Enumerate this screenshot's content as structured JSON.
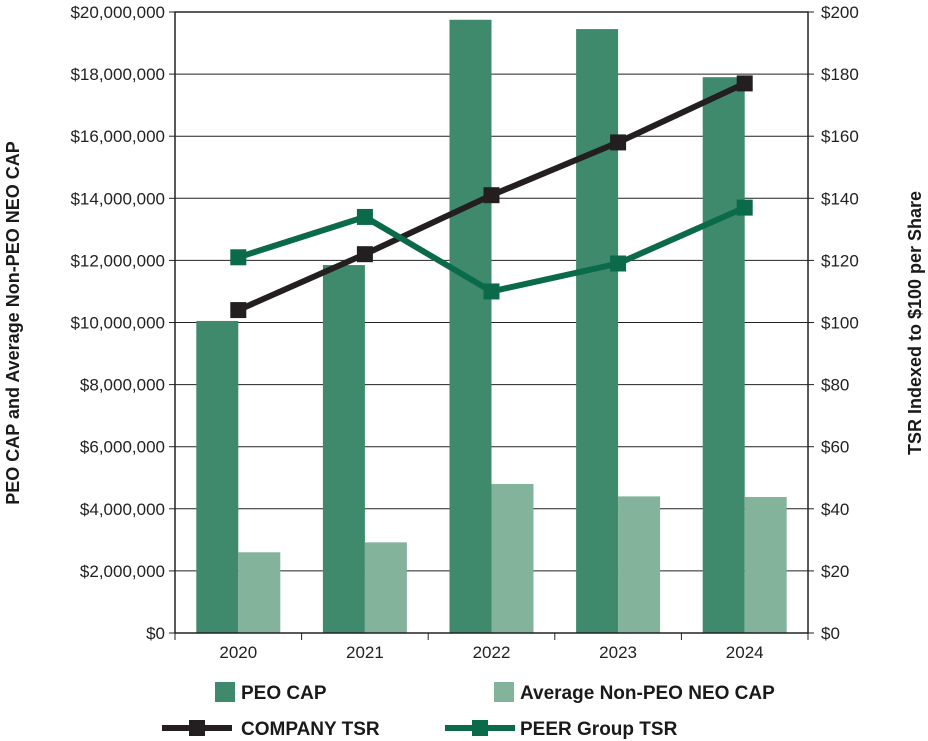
{
  "chart_data": {
    "type": "bar+line",
    "categories": [
      "2020",
      "2021",
      "2022",
      "2023",
      "2024"
    ],
    "left_axis": {
      "label": "PEO CAP and Average Non-PEO NEO CAP",
      "range": [
        0,
        20000000
      ],
      "ticks": [
        "$0",
        "$2,000,000",
        "$4,000,000",
        "$6,000,000",
        "$8,000,000",
        "$10,000,000",
        "$12,000,000",
        "$14,000,000",
        "$16,000,000",
        "$18,000,000",
        "$20,000,000"
      ]
    },
    "right_axis": {
      "label": "TSR Indexed to $100 per Share",
      "range": [
        0,
        200
      ],
      "ticks": [
        "$0",
        "$20",
        "$40",
        "$60",
        "$80",
        "$100",
        "$120",
        "$140",
        "$160",
        "$180",
        "$200"
      ]
    },
    "bar_series": [
      {
        "name": "PEO CAP",
        "color": "#3f8a6c",
        "values": [
          10050000,
          11850000,
          19750000,
          19450000,
          17900000
        ]
      },
      {
        "name": "Average Non-PEO NEO CAP",
        "color": "#84b39c",
        "values": [
          2600000,
          2920000,
          4800000,
          4400000,
          4380000
        ]
      }
    ],
    "line_series": [
      {
        "name": "COMPANY TSR",
        "color": "#231f20",
        "values": [
          104,
          122,
          141,
          158,
          177
        ]
      },
      {
        "name": "PEER Group TSR",
        "color": "#0b6a4a",
        "values": [
          121,
          134,
          110,
          119,
          137
        ]
      }
    ],
    "grid": true,
    "legend_position": "bottom"
  }
}
